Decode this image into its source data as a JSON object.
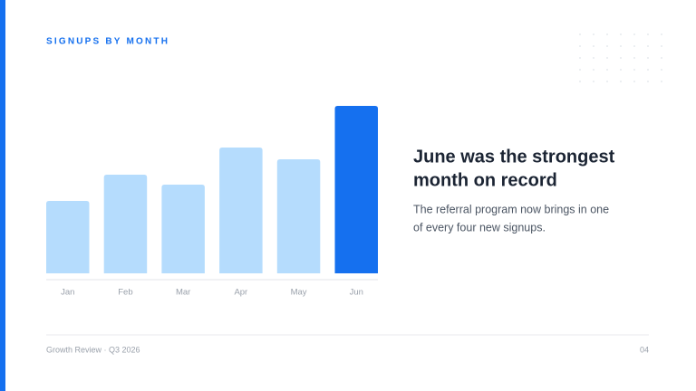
{
  "chart_data": {
    "type": "bar",
    "title": "SIGNUPS BY MONTH",
    "categories": [
      "Jan",
      "Feb",
      "Mar",
      "Apr",
      "May",
      "Jun"
    ],
    "values": [
      80,
      109,
      98,
      139,
      126,
      185
    ],
    "colors": [
      "#b5dcfd",
      "#b5dcfd",
      "#b5dcfd",
      "#b5dcfd",
      "#b5dcfd",
      "#1570ef"
    ]
  },
  "slide": {
    "heading": [
      "June was the strongest",
      "month on record"
    ],
    "body": [
      "The referral program now brings in one",
      "of every four new signups."
    ],
    "footer": "Growth Review · Q3 2026",
    "page_number": "04"
  }
}
